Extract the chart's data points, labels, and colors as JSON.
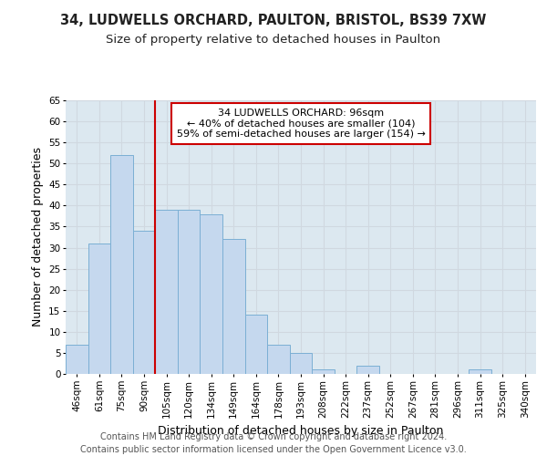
{
  "title": "34, LUDWELLS ORCHARD, PAULTON, BRISTOL, BS39 7XW",
  "subtitle": "Size of property relative to detached houses in Paulton",
  "xlabel": "Distribution of detached houses by size in Paulton",
  "ylabel": "Number of detached properties",
  "categories": [
    "46sqm",
    "61sqm",
    "75sqm",
    "90sqm",
    "105sqm",
    "120sqm",
    "134sqm",
    "149sqm",
    "164sqm",
    "178sqm",
    "193sqm",
    "208sqm",
    "222sqm",
    "237sqm",
    "252sqm",
    "267sqm",
    "281sqm",
    "296sqm",
    "311sqm",
    "325sqm",
    "340sqm"
  ],
  "values": [
    7,
    31,
    52,
    34,
    39,
    39,
    38,
    32,
    14,
    7,
    5,
    1,
    0,
    2,
    0,
    0,
    0,
    0,
    1,
    0,
    0
  ],
  "bar_color": "#c5d8ee",
  "bar_edge_color": "#7bafd4",
  "red_line_x": 3.5,
  "annotation_title": "34 LUDWELLS ORCHARD: 96sqm",
  "annotation_line1": "← 40% of detached houses are smaller (104)",
  "annotation_line2": "59% of semi-detached houses are larger (154) →",
  "annotation_box_color": "#ffffff",
  "annotation_box_edge_color": "#cc0000",
  "red_line_color": "#cc0000",
  "ylim": [
    0,
    65
  ],
  "yticks": [
    0,
    5,
    10,
    15,
    20,
    25,
    30,
    35,
    40,
    45,
    50,
    55,
    60,
    65
  ],
  "grid_color": "#d0d8e0",
  "bg_color": "#dce8f0",
  "footer_line1": "Contains HM Land Registry data © Crown copyright and database right 2024.",
  "footer_line2": "Contains public sector information licensed under the Open Government Licence v3.0.",
  "title_fontsize": 10.5,
  "subtitle_fontsize": 9.5,
  "axis_label_fontsize": 9,
  "tick_fontsize": 7.5,
  "annotation_fontsize": 8,
  "footer_fontsize": 7
}
